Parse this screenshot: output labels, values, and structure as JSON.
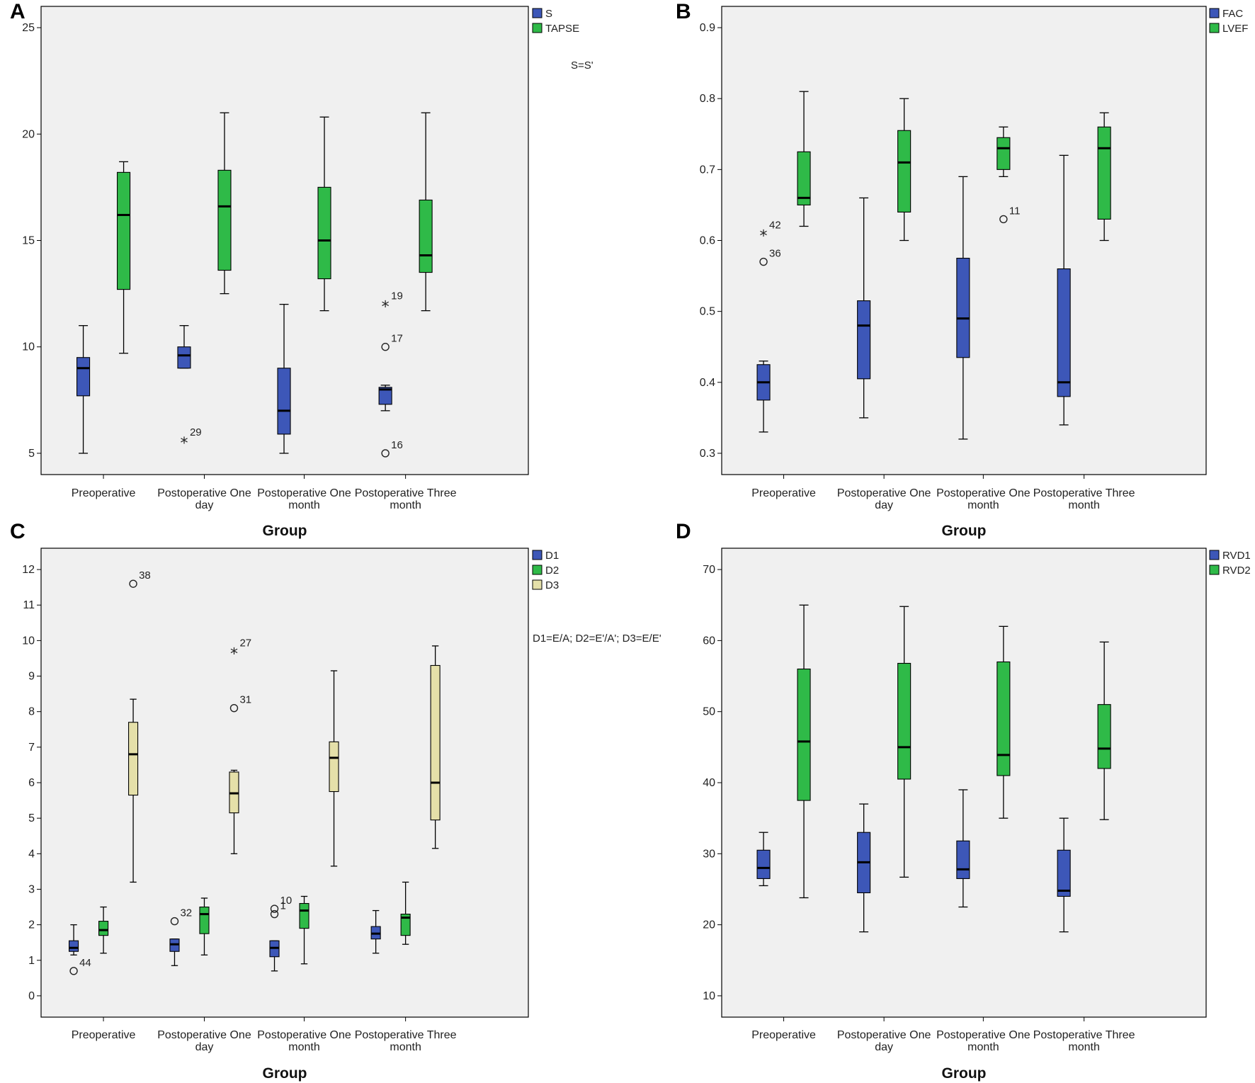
{
  "colors": {
    "blue": "#3d57b8",
    "green": "#2fba48",
    "tan": "#e5e0a9",
    "plotbg": "#f0f0f0"
  },
  "chart_data": [
    {
      "panel": "A",
      "type": "box",
      "xlabel": "Group",
      "ylim": [
        4.0,
        26.0
      ],
      "yticks": [
        5,
        10,
        15,
        20,
        25
      ],
      "tick_labels": [
        "5",
        "10",
        "15",
        "20",
        "25"
      ],
      "categories": [
        [
          "Preoperative"
        ],
        [
          "Postoperative One",
          "day"
        ],
        [
          "Postoperative One",
          "month"
        ],
        [
          "Postoperative Three",
          "month"
        ]
      ],
      "legend": [
        {
          "name": "S",
          "color": "blue"
        },
        {
          "name": "TAPSE",
          "color": "green"
        }
      ],
      "note": "S=S'",
      "series": [
        {
          "name": "S",
          "color": "blue",
          "boxes": [
            {
              "min": 5.0,
              "q1": 7.7,
              "median": 9.0,
              "q3": 9.5,
              "max": 11.0,
              "outliers": []
            },
            {
              "min": 9.0,
              "q1": 9.0,
              "median": 9.6,
              "q3": 10.0,
              "max": 11.0,
              "outliers": [
                {
                  "value": 5.6,
                  "label": "29",
                  "kind": "extreme"
                }
              ]
            },
            {
              "min": 5.0,
              "q1": 5.9,
              "median": 7.0,
              "q3": 9.0,
              "max": 12.0,
              "outliers": []
            },
            {
              "min": 7.0,
              "q1": 7.3,
              "median": 8.0,
              "q3": 8.1,
              "max": 8.2,
              "outliers": [
                {
                  "value": 12.0,
                  "label": "19",
                  "kind": "extreme"
                },
                {
                  "value": 10.0,
                  "label": "17",
                  "kind": "circle"
                },
                {
                  "value": 5.0,
                  "label": "16",
                  "kind": "circle"
                }
              ]
            }
          ]
        },
        {
          "name": "TAPSE",
          "color": "green",
          "boxes": [
            {
              "min": 9.7,
              "q1": 12.7,
              "median": 16.2,
              "q3": 18.2,
              "max": 18.7,
              "outliers": []
            },
            {
              "min": 12.5,
              "q1": 13.6,
              "median": 16.6,
              "q3": 18.3,
              "max": 21.0,
              "outliers": []
            },
            {
              "min": 11.7,
              "q1": 13.2,
              "median": 15.0,
              "q3": 17.5,
              "max": 20.8,
              "outliers": []
            },
            {
              "min": 11.7,
              "q1": 13.5,
              "median": 14.3,
              "q3": 16.9,
              "max": 21.0,
              "outliers": []
            }
          ]
        }
      ]
    },
    {
      "panel": "B",
      "type": "box",
      "xlabel": "Group",
      "ylim": [
        0.27,
        0.93
      ],
      "yticks": [
        0.3,
        0.4,
        0.5,
        0.6,
        0.7,
        0.8,
        0.9
      ],
      "tick_labels": [
        "0.3",
        "0.4",
        "0.5",
        "0.6",
        "0.7",
        "0.8",
        "0.9"
      ],
      "categories": [
        [
          "Preoperative"
        ],
        [
          "Postoperative One",
          "day"
        ],
        [
          "Postoperative One",
          "month"
        ],
        [
          "Postoperative Three",
          "month"
        ]
      ],
      "legend": [
        {
          "name": "FAC",
          "color": "blue"
        },
        {
          "name": "LVEF",
          "color": "green"
        }
      ],
      "note": "",
      "series": [
        {
          "name": "FAC",
          "color": "blue",
          "boxes": [
            {
              "min": 0.33,
              "q1": 0.375,
              "median": 0.4,
              "q3": 0.425,
              "max": 0.43,
              "outliers": [
                {
                  "value": 0.61,
                  "label": "42",
                  "kind": "extreme"
                },
                {
                  "value": 0.57,
                  "label": "36",
                  "kind": "circle"
                }
              ]
            },
            {
              "min": 0.35,
              "q1": 0.405,
              "median": 0.48,
              "q3": 0.515,
              "max": 0.66,
              "outliers": []
            },
            {
              "min": 0.32,
              "q1": 0.435,
              "median": 0.49,
              "q3": 0.575,
              "max": 0.69,
              "outliers": []
            },
            {
              "min": 0.34,
              "q1": 0.38,
              "median": 0.4,
              "q3": 0.56,
              "max": 0.72,
              "outliers": []
            }
          ]
        },
        {
          "name": "LVEF",
          "color": "green",
          "boxes": [
            {
              "min": 0.62,
              "q1": 0.65,
              "median": 0.66,
              "q3": 0.725,
              "max": 0.81,
              "outliers": []
            },
            {
              "min": 0.6,
              "q1": 0.64,
              "median": 0.71,
              "q3": 0.755,
              "max": 0.8,
              "outliers": []
            },
            {
              "min": 0.69,
              "q1": 0.7,
              "median": 0.73,
              "q3": 0.745,
              "max": 0.76,
              "outliers": [
                {
                  "value": 0.63,
                  "label": "11",
                  "kind": "circle"
                }
              ]
            },
            {
              "min": 0.6,
              "q1": 0.63,
              "median": 0.73,
              "q3": 0.76,
              "max": 0.78,
              "outliers": []
            }
          ]
        }
      ]
    },
    {
      "panel": "C",
      "type": "box",
      "xlabel": "Group",
      "ylim": [
        -0.6,
        12.6
      ],
      "yticks": [
        0,
        1,
        2,
        3,
        4,
        5,
        6,
        7,
        8,
        9,
        10,
        11,
        12
      ],
      "tick_labels": [
        "0",
        "1",
        "2",
        "3",
        "4",
        "5",
        "6",
        "7",
        "8",
        "9",
        "10",
        "11",
        "12"
      ],
      "categories": [
        [
          "Preoperative"
        ],
        [
          "Postoperative One",
          "day"
        ],
        [
          "Postoperative One",
          "month"
        ],
        [
          "Postoperative Three",
          "month"
        ]
      ],
      "legend": [
        {
          "name": "D1",
          "color": "blue"
        },
        {
          "name": "D2",
          "color": "green"
        },
        {
          "name": "D3",
          "color": "tan"
        }
      ],
      "note": "D1=E/A;  D2=E'/A';  D3=E/E'",
      "series": [
        {
          "name": "D1",
          "color": "blue",
          "boxes": [
            {
              "min": 1.15,
              "q1": 1.25,
              "median": 1.35,
              "q3": 1.55,
              "max": 2.0,
              "outliers": [
                {
                  "value": 0.7,
                  "label": "44",
                  "kind": "circle"
                }
              ]
            },
            {
              "min": 0.85,
              "q1": 1.25,
              "median": 1.45,
              "q3": 1.6,
              "max": 1.6,
              "outliers": [
                {
                  "value": 2.1,
                  "label": "32",
                  "kind": "circle"
                }
              ]
            },
            {
              "min": 0.7,
              "q1": 1.1,
              "median": 1.35,
              "q3": 1.55,
              "max": 1.55,
              "outliers": [
                {
                  "value": 2.45,
                  "label": "10",
                  "kind": "circle"
                },
                {
                  "value": 2.3,
                  "label": "1",
                  "kind": "circle"
                }
              ]
            },
            {
              "min": 1.2,
              "q1": 1.6,
              "median": 1.75,
              "q3": 1.95,
              "max": 2.4,
              "outliers": []
            }
          ]
        },
        {
          "name": "D2",
          "color": "green",
          "boxes": [
            {
              "min": 1.2,
              "q1": 1.7,
              "median": 1.85,
              "q3": 2.1,
              "max": 2.5,
              "outliers": []
            },
            {
              "min": 1.15,
              "q1": 1.75,
              "median": 2.3,
              "q3": 2.5,
              "max": 2.75,
              "outliers": []
            },
            {
              "min": 0.9,
              "q1": 1.9,
              "median": 2.4,
              "q3": 2.6,
              "max": 2.8,
              "outliers": []
            },
            {
              "min": 1.45,
              "q1": 1.7,
              "median": 2.2,
              "q3": 2.3,
              "max": 3.2,
              "outliers": []
            }
          ]
        },
        {
          "name": "D3",
          "color": "tan",
          "boxes": [
            {
              "min": 3.2,
              "q1": 5.65,
              "median": 6.8,
              "q3": 7.7,
              "max": 8.35,
              "outliers": [
                {
                  "value": 11.6,
                  "label": "38",
                  "kind": "circle"
                }
              ]
            },
            {
              "min": 4.0,
              "q1": 5.15,
              "median": 5.7,
              "q3": 6.3,
              "max": 6.35,
              "outliers": [
                {
                  "value": 9.7,
                  "label": "27",
                  "kind": "extreme"
                },
                {
                  "value": 8.1,
                  "label": "31",
                  "kind": "circle"
                }
              ]
            },
            {
              "min": 3.65,
              "q1": 5.75,
              "median": 6.7,
              "q3": 7.15,
              "max": 9.15,
              "outliers": []
            },
            {
              "min": 4.15,
              "q1": 4.95,
              "median": 6.0,
              "q3": 9.3,
              "max": 9.85,
              "outliers": []
            }
          ]
        }
      ]
    },
    {
      "panel": "D",
      "type": "box",
      "xlabel": "Group",
      "ylim": [
        7.0,
        73.0
      ],
      "yticks": [
        10,
        20,
        30,
        40,
        50,
        60,
        70
      ],
      "tick_labels": [
        "10",
        "20",
        "30",
        "40",
        "50",
        "60",
        "70"
      ],
      "categories": [
        [
          "Preoperative"
        ],
        [
          "Postoperative One",
          "day"
        ],
        [
          "Postoperative One",
          "month"
        ],
        [
          "Postoperative Three",
          "month"
        ]
      ],
      "legend": [
        {
          "name": "RVD1",
          "color": "blue"
        },
        {
          "name": "RVD2",
          "color": "green"
        }
      ],
      "note": "",
      "series": [
        {
          "name": "RVD1",
          "color": "blue",
          "boxes": [
            {
              "min": 25.5,
              "q1": 26.5,
              "median": 28.0,
              "q3": 30.5,
              "max": 33.0,
              "outliers": []
            },
            {
              "min": 19.0,
              "q1": 24.5,
              "median": 28.8,
              "q3": 33.0,
              "max": 37.0,
              "outliers": []
            },
            {
              "min": 22.5,
              "q1": 26.5,
              "median": 27.8,
              "q3": 31.8,
              "max": 39.0,
              "outliers": []
            },
            {
              "min": 19.0,
              "q1": 24.0,
              "median": 24.8,
              "q3": 30.5,
              "max": 35.0,
              "outliers": []
            }
          ]
        },
        {
          "name": "RVD2",
          "color": "green",
          "boxes": [
            {
              "min": 23.8,
              "q1": 37.5,
              "median": 45.8,
              "q3": 56.0,
              "max": 65.0,
              "outliers": []
            },
            {
              "min": 26.7,
              "q1": 40.5,
              "median": 45.0,
              "q3": 56.8,
              "max": 64.8,
              "outliers": []
            },
            {
              "min": 35.0,
              "q1": 41.0,
              "median": 43.9,
              "q3": 57.0,
              "max": 62.0,
              "outliers": []
            },
            {
              "min": 34.8,
              "q1": 42.0,
              "median": 44.8,
              "q3": 51.0,
              "max": 59.8,
              "outliers": []
            }
          ]
        }
      ]
    }
  ]
}
